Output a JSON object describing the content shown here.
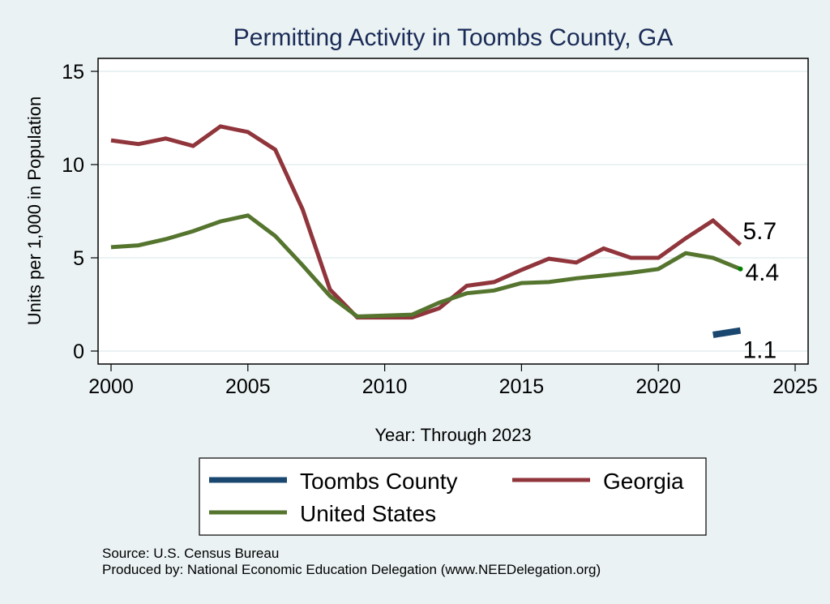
{
  "chart_data": {
    "type": "line",
    "title": "Permitting Activity in Toombs County, GA",
    "xlabel": "Year: Through 2023",
    "ylabel": "Units per 1,000 in Population",
    "xlim": [
      2000,
      2025
    ],
    "ylim": [
      0,
      15
    ],
    "xticks": [
      "2000",
      "2005",
      "2010",
      "2015",
      "2020",
      "2025"
    ],
    "yticks": [
      "0",
      "5",
      "10",
      "15"
    ],
    "grid": true,
    "legend_position": "bottom",
    "series": [
      {
        "name": "Toombs County",
        "color": "#1a476f",
        "x": [
          2022,
          2023
        ],
        "values": [
          0.87,
          1.1
        ],
        "end_label": "1.1"
      },
      {
        "name": "Georgia",
        "color": "#90353b",
        "x": [
          2000,
          2001,
          2002,
          2003,
          2004,
          2005,
          2006,
          2007,
          2008,
          2009,
          2010,
          2011,
          2012,
          2013,
          2014,
          2015,
          2016,
          2017,
          2018,
          2019,
          2020,
          2021,
          2022,
          2023
        ],
        "values": [
          11.3,
          11.1,
          11.4,
          11.0,
          12.05,
          11.75,
          10.8,
          7.6,
          3.3,
          1.8,
          1.8,
          1.8,
          2.3,
          3.5,
          3.7,
          4.35,
          4.95,
          4.75,
          5.5,
          5.0,
          5.0,
          6.05,
          7.0,
          5.7
        ],
        "end_label": "5.7"
      },
      {
        "name": "United States",
        "color": "#55752f",
        "x": [
          2000,
          2001,
          2002,
          2003,
          2004,
          2005,
          2006,
          2007,
          2008,
          2009,
          2010,
          2011,
          2012,
          2013,
          2014,
          2015,
          2016,
          2017,
          2018,
          2019,
          2020,
          2021,
          2022,
          2023
        ],
        "values": [
          5.57,
          5.67,
          6.0,
          6.43,
          6.95,
          7.27,
          6.17,
          4.6,
          2.95,
          1.85,
          1.9,
          1.95,
          2.6,
          3.1,
          3.25,
          3.65,
          3.7,
          3.9,
          4.05,
          4.2,
          4.4,
          5.25,
          5.0,
          4.4
        ],
        "end_label": "4.4"
      }
    ],
    "notes": [
      "Source: U.S. Census Bureau",
      "Produced by: National Economic Education Delegation (www.NEEDelegation.org)"
    ]
  }
}
